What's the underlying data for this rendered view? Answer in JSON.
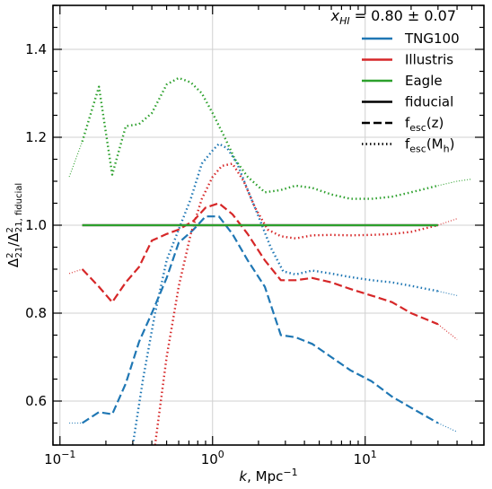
{
  "chart_data": {
    "type": "line",
    "title": "x_HI = 0.80 ± 0.07",
    "title_parts": {
      "var": "x",
      "sub": "HI",
      "rest": " = 0.80 ± 0.07"
    },
    "xlabel": "k, Mpc⁻¹",
    "xlabel_parts": {
      "var": "k",
      "rest": ", Mpc",
      "sup": "−1"
    },
    "ylabel": "Δ²21/Δ²21, fiducial",
    "x_scale": "log",
    "xlim": [
      0.09,
      60
    ],
    "ylim": [
      0.5,
      1.5
    ],
    "grid": true,
    "legend_position": "top-right",
    "x_ticks": [
      {
        "value": 0.1,
        "base": "10",
        "exp": "−1"
      },
      {
        "value": 1,
        "base": "10",
        "exp": "0"
      },
      {
        "value": 10,
        "base": "10",
        "exp": "1"
      }
    ],
    "y_ticks": [
      0.6,
      0.8,
      1.0,
      1.2,
      1.4
    ],
    "y_tick_labels": [
      "0.6",
      "0.8",
      "1.0",
      "1.2",
      "1.4"
    ],
    "colors": {
      "TNG100": "#1f77b4",
      "Illustris": "#d62728",
      "Eagle": "#2ca02c",
      "fiducial": "#000000"
    },
    "legend": [
      {
        "label": "TNG100",
        "kind": "color",
        "color": "#1f77b4"
      },
      {
        "label": "Illustris",
        "kind": "color",
        "color": "#d62728"
      },
      {
        "label": "Eagle",
        "kind": "color",
        "color": "#2ca02c"
      },
      {
        "label": "fiducial",
        "kind": "style",
        "style": "solid"
      },
      {
        "label": "f_esc(z)",
        "kind": "style",
        "style": "dashed",
        "main": "f",
        "sub": "esc",
        "tail": "(z)"
      },
      {
        "label": "f_esc(M_h)",
        "kind": "style",
        "style": "dotted",
        "main": "f",
        "sub": "esc",
        "tail": "(M",
        "sub2": "h",
        "tail2": ")"
      }
    ],
    "series": [
      {
        "name": "TNG100",
        "variant": "fiducial",
        "style": "solid",
        "color": "#1f77b4",
        "x": [
          0.14,
          30
        ],
        "y": [
          1.0,
          1.0
        ]
      },
      {
        "name": "Illustris",
        "variant": "fiducial",
        "style": "solid",
        "color": "#d62728",
        "x": [
          0.14,
          30
        ],
        "y": [
          1.0,
          1.0
        ]
      },
      {
        "name": "Eagle",
        "variant": "fiducial",
        "style": "solid",
        "color": "#2ca02c",
        "x": [
          0.14,
          30
        ],
        "y": [
          1.0,
          1.0
        ]
      },
      {
        "name": "TNG100",
        "variant": "f_esc(z)",
        "style": "dashed",
        "color": "#1f77b4",
        "x": [
          0.14,
          0.18,
          0.22,
          0.27,
          0.33,
          0.4,
          0.5,
          0.6,
          0.75,
          0.9,
          1.1,
          1.35,
          1.7,
          2.2,
          2.8,
          3.5,
          4.5,
          6,
          8,
          11,
          15,
          20,
          30
        ],
        "y": [
          0.55,
          0.575,
          0.57,
          0.64,
          0.735,
          0.8,
          0.88,
          0.96,
          0.99,
          1.02,
          1.02,
          0.98,
          0.92,
          0.86,
          0.75,
          0.745,
          0.73,
          0.7,
          0.67,
          0.645,
          0.61,
          0.585,
          0.55
        ]
      },
      {
        "name": "Illustris",
        "variant": "f_esc(z)",
        "style": "dashed",
        "color": "#d62728",
        "x": [
          0.14,
          0.18,
          0.22,
          0.27,
          0.33,
          0.4,
          0.5,
          0.6,
          0.75,
          0.9,
          1.1,
          1.35,
          1.7,
          2.2,
          2.8,
          3.5,
          4.5,
          6,
          8,
          11,
          15,
          20,
          30
        ],
        "y": [
          0.9,
          0.86,
          0.825,
          0.87,
          0.905,
          0.965,
          0.98,
          0.99,
          1.01,
          1.04,
          1.05,
          1.025,
          0.98,
          0.92,
          0.875,
          0.875,
          0.88,
          0.87,
          0.855,
          0.84,
          0.825,
          0.8,
          0.775
        ]
      },
      {
        "name": "TNG100",
        "variant": "f_esc(M_h)",
        "style": "dotted",
        "color": "#1f77b4",
        "x": [
          0.3,
          0.35,
          0.42,
          0.5,
          0.6,
          0.72,
          0.85,
          1.0,
          1.1,
          1.25,
          1.45,
          1.7,
          2.0,
          2.4,
          2.9,
          3.5,
          4.5,
          6,
          8,
          11,
          15,
          20,
          30
        ],
        "y": [
          0.5,
          0.65,
          0.8,
          0.92,
          0.99,
          1.06,
          1.14,
          1.17,
          1.185,
          1.175,
          1.14,
          1.08,
          1.02,
          0.95,
          0.895,
          0.888,
          0.897,
          0.89,
          0.882,
          0.875,
          0.87,
          0.862,
          0.85
        ]
      },
      {
        "name": "Illustris",
        "variant": "f_esc(M_h)",
        "style": "dotted",
        "color": "#d62728",
        "x": [
          0.42,
          0.5,
          0.6,
          0.72,
          0.85,
          1.0,
          1.15,
          1.35,
          1.6,
          1.9,
          2.3,
          2.8,
          3.5,
          4.5,
          6,
          8,
          11,
          15,
          20,
          30
        ],
        "y": [
          0.5,
          0.7,
          0.86,
          0.98,
          1.06,
          1.11,
          1.135,
          1.14,
          1.1,
          1.04,
          0.99,
          0.975,
          0.97,
          0.977,
          0.978,
          0.977,
          0.978,
          0.98,
          0.985,
          1.0
        ]
      },
      {
        "name": "Eagle",
        "variant": "f_esc(M_h)",
        "style": "dotted",
        "color": "#2ca02c",
        "x": [
          0.14,
          0.18,
          0.22,
          0.27,
          0.33,
          0.4,
          0.5,
          0.6,
          0.72,
          0.85,
          1.0,
          1.2,
          1.4,
          1.7,
          2.2,
          2.8,
          3.5,
          4.5,
          6,
          8,
          11,
          15,
          20,
          30
        ],
        "y": [
          1.19,
          1.315,
          1.115,
          1.225,
          1.23,
          1.255,
          1.32,
          1.335,
          1.325,
          1.3,
          1.255,
          1.2,
          1.15,
          1.11,
          1.075,
          1.08,
          1.09,
          1.085,
          1.07,
          1.06,
          1.06,
          1.065,
          1.075,
          1.09
        ]
      },
      {
        "name": "TNG100",
        "variant": "extrapolated",
        "style": "thin-dotted",
        "color": "#1f77b4",
        "x": [
          0.115,
          0.14
        ],
        "y": [
          0.55,
          0.55
        ]
      },
      {
        "name": "TNG100",
        "variant": "extrapolated",
        "style": "thin-dotted",
        "color": "#1f77b4",
        "x": [
          30,
          40
        ],
        "y": [
          0.55,
          0.53
        ]
      },
      {
        "name": "Illustris",
        "variant": "extrapolated",
        "style": "thin-dotted",
        "color": "#d62728",
        "x": [
          0.115,
          0.14
        ],
        "y": [
          0.89,
          0.9
        ]
      },
      {
        "name": "Illustris",
        "variant": "extrapolated",
        "style": "thin-dotted",
        "color": "#d62728",
        "x": [
          30,
          40
        ],
        "y": [
          0.775,
          0.74
        ]
      },
      {
        "name": "TNG100",
        "variant": "extrapolated",
        "style": "thin-dotted",
        "color": "#1f77b4",
        "x": [
          30,
          40
        ],
        "y": [
          0.85,
          0.84
        ]
      },
      {
        "name": "Illustris",
        "variant": "extrapolated",
        "style": "thin-dotted",
        "color": "#d62728",
        "x": [
          30,
          40
        ],
        "y": [
          1.0,
          1.015
        ]
      },
      {
        "name": "Eagle",
        "variant": "extrapolated",
        "style": "thin-dotted",
        "color": "#2ca02c",
        "x": [
          0.115,
          0.14
        ],
        "y": [
          1.11,
          1.19
        ]
      },
      {
        "name": "Eagle",
        "variant": "extrapolated",
        "style": "thin-dotted",
        "color": "#2ca02c",
        "x": [
          30,
          40,
          50
        ],
        "y": [
          1.09,
          1.1,
          1.105
        ]
      }
    ]
  }
}
